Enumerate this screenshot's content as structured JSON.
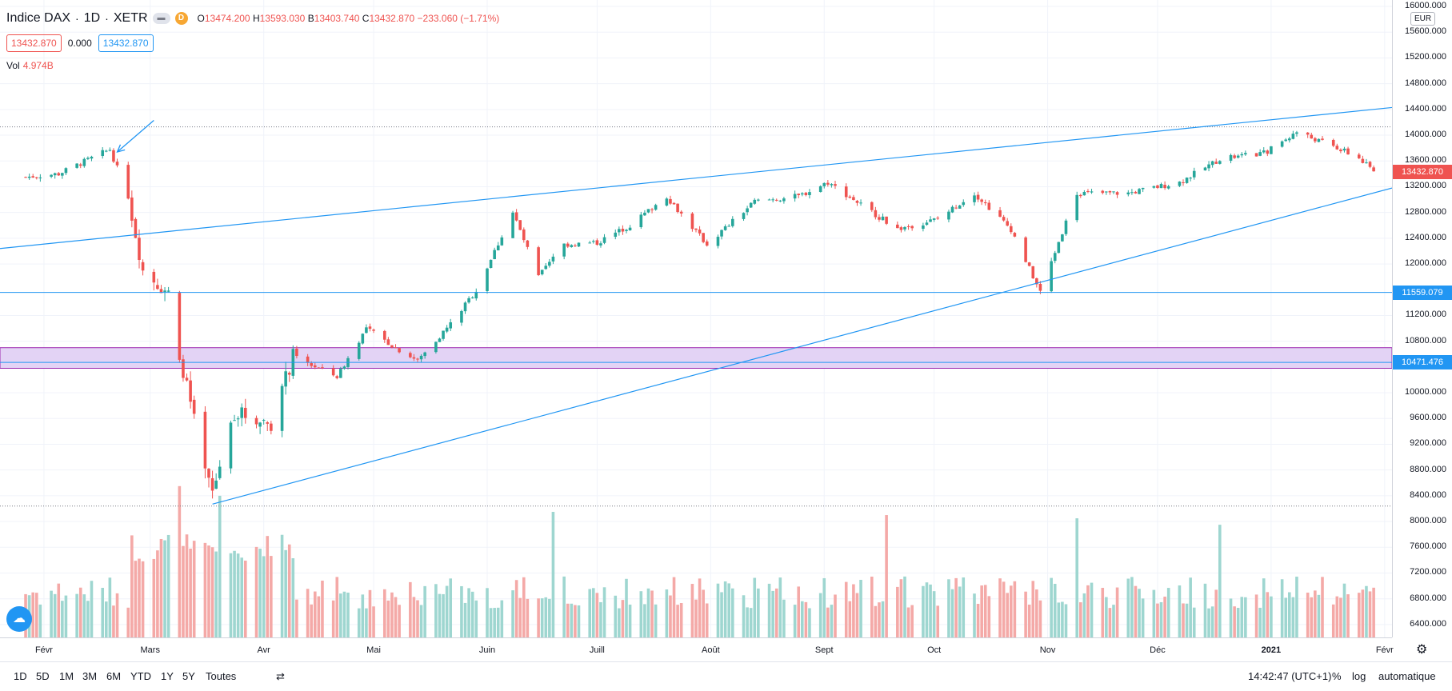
{
  "header": {
    "symbol": "Indice DAX",
    "sep1": "·",
    "interval": "1D",
    "sep2": "·",
    "exchange": "XETR",
    "interval_badge": "D",
    "o_label": "O",
    "o_value": "13474.200",
    "h_label": "H",
    "h_value": "13593.030",
    "b_label": "B",
    "b_value": "13403.740",
    "c_label": "C",
    "c_value": "13432.870",
    "change": "−233.060 (−1.71%)",
    "bid": "13432.870",
    "spread": "0.000",
    "ask": "13432.870",
    "vol_label": "Vol",
    "vol_value": "4.974B"
  },
  "price_axis": {
    "currency": "EUR",
    "ticks": [
      "16000.000",
      "15600.000",
      "15200.000",
      "14800.000",
      "14400.000",
      "14000.000",
      "13600.000",
      "13200.000",
      "12800.000",
      "12400.000",
      "12000.000",
      "11200.000",
      "10800.000",
      "10000.000",
      "9600.000",
      "9200.000",
      "8800.000",
      "8400.000",
      "8000.000",
      "7600.000",
      "7200.000",
      "6800.000",
      "6400.000"
    ],
    "last_price_tag": "13432.870",
    "line_tag_1": "11559.079",
    "line_tag_2": "10471.476"
  },
  "time_axis": {
    "labels": [
      "Févr",
      "Mars",
      "Avr",
      "Mai",
      "Juin",
      "Juill",
      "Août",
      "Sept",
      "Oct",
      "Nov",
      "Déc",
      "2021",
      "Févr"
    ]
  },
  "toolbar": {
    "ranges": [
      "1D",
      "5D",
      "1M",
      "3M",
      "6M",
      "YTD",
      "1Y",
      "5Y",
      "Toutes"
    ],
    "time": "14:42:47 (UTC+1)",
    "percent": "%",
    "log": "log",
    "auto": "automatique"
  },
  "colors": {
    "up": "#26a69a",
    "down": "#ef5350",
    "vol_up": "#9ed6d0",
    "vol_down": "#f4a9a7",
    "trend": "#2196f3",
    "zone_fill": "#e3d3f5",
    "zone_border": "#9c27b0"
  },
  "chart_data": {
    "type": "candlestick",
    "symbol": "Indice DAX",
    "interval": "1D",
    "last_close": 13432.87,
    "ylim": [
      6200,
      16100
    ],
    "horizontal_lines": [
      11559.079,
      10471.476,
      14130,
      8240
    ],
    "zone": [
      10380,
      10700
    ],
    "anchors": [
      [
        "2020-01-27",
        13350
      ],
      [
        "2020-02-05",
        13400
      ],
      [
        "2020-02-19",
        13780
      ],
      [
        "2020-02-24",
        13050
      ],
      [
        "2020-02-28",
        11900
      ],
      [
        "2020-03-06",
        11550
      ],
      [
        "2020-03-09",
        10620
      ],
      [
        "2020-03-16",
        8750
      ],
      [
        "2020-03-18",
        8440
      ],
      [
        "2020-03-24",
        9700
      ],
      [
        "2020-04-03",
        9530
      ],
      [
        "2020-04-09",
        10560
      ],
      [
        "2020-04-21",
        10250
      ],
      [
        "2020-04-29",
        11000
      ],
      [
        "2020-05-07",
        10700
      ],
      [
        "2020-05-13",
        10500
      ],
      [
        "2020-05-22",
        11070
      ],
      [
        "2020-05-29",
        11590
      ],
      [
        "2020-06-08",
        12800
      ],
      [
        "2020-06-15",
        11800
      ],
      [
        "2020-06-22",
        12300
      ],
      [
        "2020-07-01",
        12330
      ],
      [
        "2020-07-10",
        12600
      ],
      [
        "2020-07-20",
        13050
      ],
      [
        "2020-07-31",
        12300
      ],
      [
        "2020-08-13",
        12970
      ],
      [
        "2020-08-25",
        13050
      ],
      [
        "2020-09-02",
        13270
      ],
      [
        "2020-09-21",
        12540
      ],
      [
        "2020-10-02",
        12700
      ],
      [
        "2020-10-12",
        13100
      ],
      [
        "2020-10-22",
        12540
      ],
      [
        "2020-10-30",
        11560
      ],
      [
        "2020-11-05",
        12500
      ],
      [
        "2020-11-09",
        13100
      ],
      [
        "2020-11-23",
        13100
      ],
      [
        "2020-12-07",
        13270
      ],
      [
        "2020-12-18",
        13630
      ],
      [
        "2020-12-30",
        13720
      ],
      [
        "2021-01-08",
        14050
      ],
      [
        "2021-01-19",
        13800
      ],
      [
        "2021-01-25",
        13640
      ],
      [
        "2021-01-29",
        13430
      ]
    ],
    "volume_spikes": [
      [
        "2020-03-09",
        8550
      ],
      [
        "2020-03-20",
        8400
      ],
      [
        "2020-06-19",
        8150
      ],
      [
        "2020-09-18",
        8100
      ],
      [
        "2020-11-09",
        8050
      ],
      [
        "2020-12-18",
        7950
      ]
    ],
    "volume_ylim": [
      6200,
      16100
    ],
    "trendlines": [
      {
        "from": [
          "2020-01-20",
          12240
        ],
        "to": [
          "2021-02-03",
          14430
        ]
      },
      {
        "from": [
          "2020-03-18",
          8270
        ],
        "to": [
          "2021-02-03",
          13180
        ]
      }
    ],
    "annotation_arrow": {
      "from": [
        "2020-03-02",
        14230
      ],
      "to": [
        "2020-02-21",
        13740
      ]
    }
  }
}
